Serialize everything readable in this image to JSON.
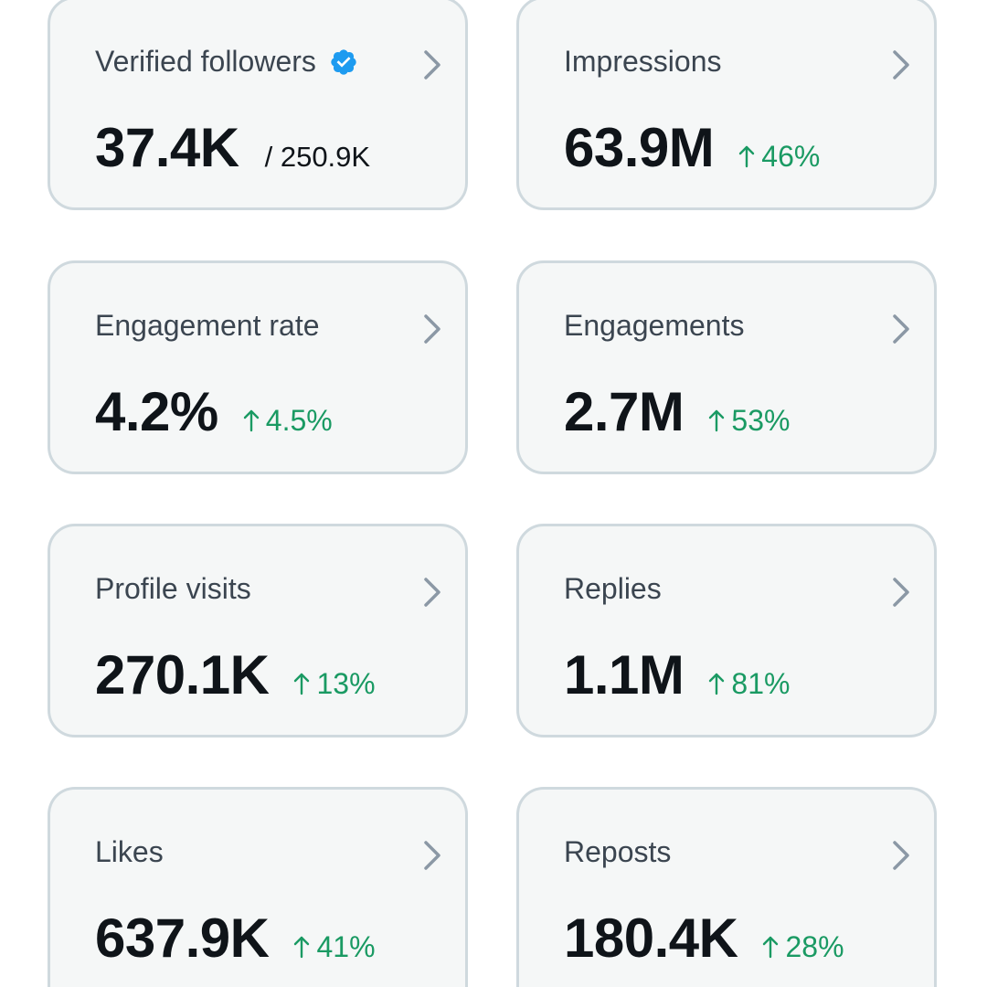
{
  "cards": [
    {
      "title": "Verified followers",
      "value": "37.4K",
      "total": "/ 250.9K"
    },
    {
      "title": "Impressions",
      "value": "63.9M",
      "change": "46%"
    },
    {
      "title": "Engagement rate",
      "value": "4.2%",
      "change": "4.5%"
    },
    {
      "title": "Engagements",
      "value": "2.7M",
      "change": "53%"
    },
    {
      "title": "Profile visits",
      "value": "270.1K",
      "change": "13%"
    },
    {
      "title": "Replies",
      "value": "1.1M",
      "change": "81%"
    },
    {
      "title": "Likes",
      "value": "637.9K",
      "change": "41%"
    },
    {
      "title": "Reposts",
      "value": "180.4K",
      "change": "28%"
    }
  ],
  "icons": {
    "verified": "verified-badge-icon",
    "chevron": "chevron-right-icon",
    "arrow": "arrow-up-icon"
  },
  "colors": {
    "card_bg": "#f5f7f7",
    "card_border": "#cfd9de",
    "value_text": "#0f1419",
    "title_text": "#3b4550",
    "positive_change": "#1a9a63",
    "verified_blue": "#1d9bf0",
    "chevron": "#8b98a5"
  }
}
